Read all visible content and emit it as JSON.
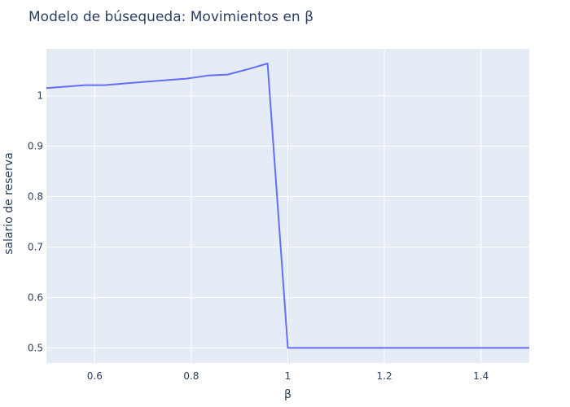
{
  "chart_data": {
    "type": "line",
    "title": "Modelo de búsequeda: Movimientos en β",
    "xlabel": "β",
    "ylabel": "salario de reserva",
    "xlim": [
      0.5,
      1.5
    ],
    "ylim": [
      0.47,
      1.093
    ],
    "xticks": [
      0.6,
      0.8,
      1.0,
      1.2,
      1.4
    ],
    "xtick_labels": [
      "0.6",
      "0.8",
      "1",
      "1.2",
      "1.4"
    ],
    "yticks": [
      0.5,
      0.6,
      0.7,
      0.8,
      0.9,
      1.0
    ],
    "ytick_labels": [
      "0.5",
      "0.6",
      "0.7",
      "0.8",
      "0.9",
      "1"
    ],
    "grid": true,
    "series": [
      {
        "color": "#636efa",
        "x": [
          0.5,
          0.58,
          0.62,
          0.67,
          0.71,
          0.75,
          0.79,
          0.835,
          0.875,
          0.915,
          0.958,
          1.0,
          1.5
        ],
        "y": [
          1.015,
          1.021,
          1.021,
          1.025,
          1.028,
          1.031,
          1.034,
          1.04,
          1.042,
          1.052,
          1.064,
          0.5,
          0.5
        ]
      }
    ],
    "colors": {
      "plot_bg": "#e5ecf6",
      "grid": "#ffffff",
      "text": "#2a3f5f"
    }
  }
}
